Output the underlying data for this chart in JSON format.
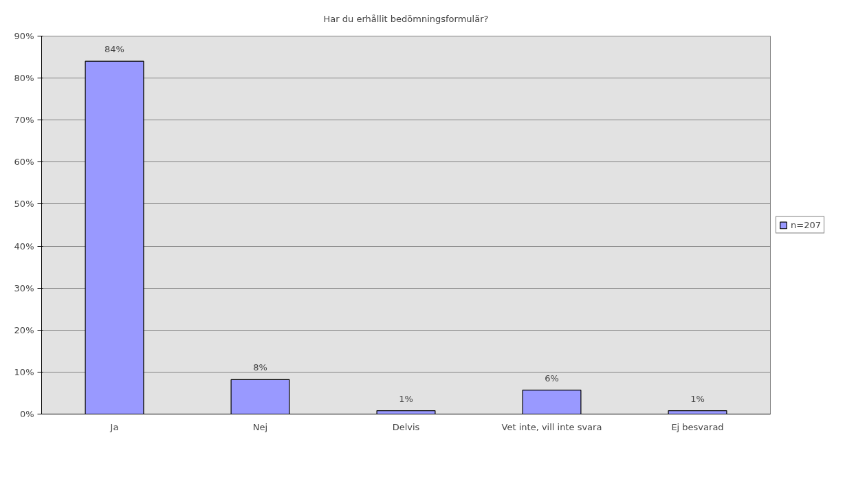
{
  "chart_data": {
    "type": "bar",
    "title": "Har du erhållit bedömningsformulär?",
    "categories": [
      "Ja",
      "Nej",
      "Delvis",
      "Vet inte, vill inte svara",
      "Ej besvarad"
    ],
    "series": [
      {
        "name": "n=207",
        "color": "#9999ff",
        "values": [
          84,
          8.2,
          0.8,
          5.7,
          0.8
        ],
        "value_labels": [
          "84%",
          "8%",
          "1%",
          "6%",
          "1%"
        ]
      }
    ],
    "ylim": [
      0,
      90
    ],
    "yticks": [
      {
        "value": 0,
        "label": "0%"
      },
      {
        "value": 10,
        "label": "10%"
      },
      {
        "value": 20,
        "label": "20%"
      },
      {
        "value": 30,
        "label": "30%"
      },
      {
        "value": 40,
        "label": "40%"
      },
      {
        "value": 50,
        "label": "50%"
      },
      {
        "value": 60,
        "label": "60%"
      },
      {
        "value": 70,
        "label": "70%"
      },
      {
        "value": 80,
        "label": "80%"
      },
      {
        "value": 90,
        "label": "90%"
      }
    ],
    "grid": "y",
    "legend": "right"
  }
}
